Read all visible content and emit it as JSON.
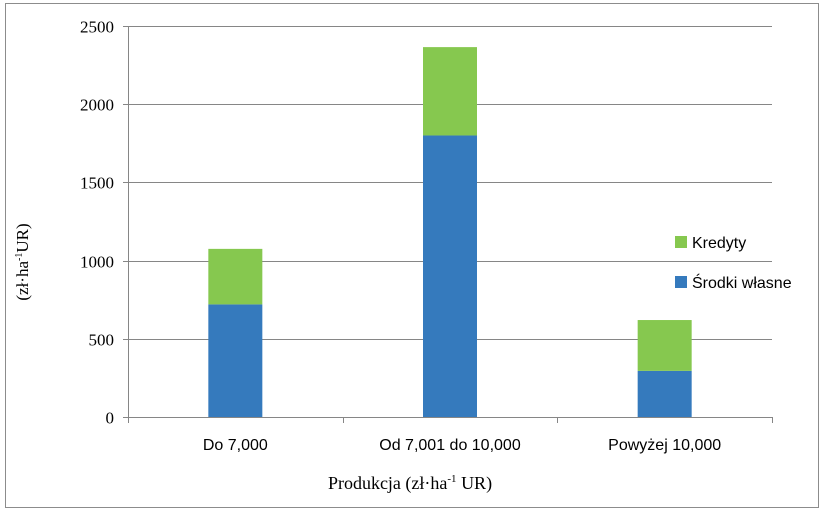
{
  "chart_data": {
    "type": "bar",
    "stacked": true,
    "categories": [
      "Do 7,000",
      "Od 7,001 do 10,000",
      "Powyżej 10,000"
    ],
    "series": [
      {
        "name": "Środki własne",
        "color": "#357ABD",
        "values": [
          720,
          1800,
          295
        ]
      },
      {
        "name": "Kredyty",
        "color": "#86C84F",
        "values": [
          355,
          565,
          325
        ]
      }
    ],
    "yticks": [
      "0",
      "500",
      "1000",
      "1500",
      "2000",
      "2500"
    ],
    "ylim": [
      0,
      2500
    ],
    "grid": true,
    "legend_position": "right",
    "ylabel": {
      "main": "(zł·ha",
      "sup": "-1",
      "tail": "UR)"
    },
    "xlabel": {
      "main": "Produkcja (zł·ha",
      "sup": "-1",
      "tail": " UR)"
    }
  }
}
